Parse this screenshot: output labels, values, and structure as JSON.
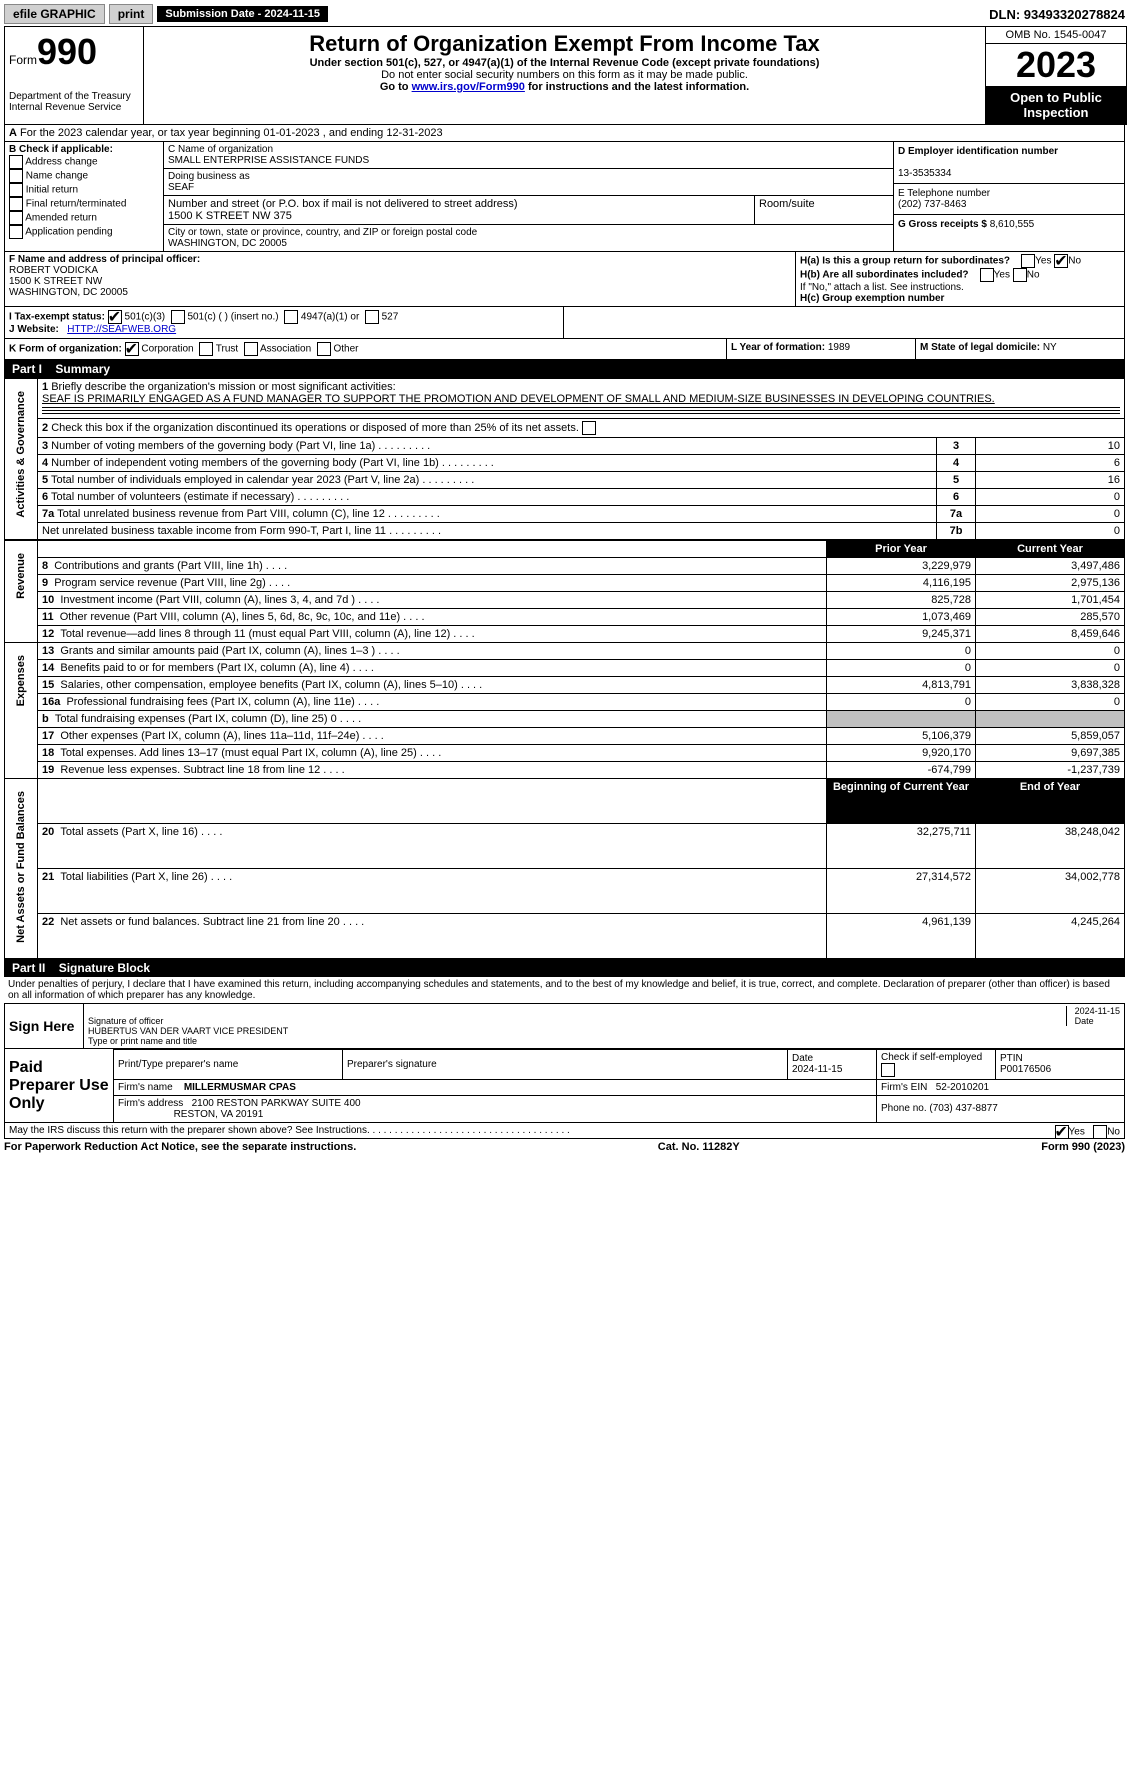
{
  "topbar": {
    "efile": "efile GRAPHIC",
    "print": "print",
    "subdate_lbl": "Submission Date - 2024-11-15",
    "dln": "DLN: 93493320278824"
  },
  "header": {
    "form_word": "Form",
    "form_num": "990",
    "dept": "Department of the Treasury",
    "irs": "Internal Revenue Service",
    "title": "Return of Organization Exempt From Income Tax",
    "sub1": "Under section 501(c), 527, or 4947(a)(1) of the Internal Revenue Code (except private foundations)",
    "sub2": "Do not enter social security numbers on this form as it may be made public.",
    "goto_pre": "Go to ",
    "goto_link": "www.irs.gov/Form990",
    "goto_post": " for instructions and the latest information.",
    "omb": "OMB No. 1545-0047",
    "year": "2023",
    "open": "Open to Public Inspection"
  },
  "row_a": {
    "lbl": "A",
    "text": "For the 2023 calendar year, or tax year beginning 01-01-2023    , and ending 12-31-2023"
  },
  "col_b": {
    "lbl": "B Check if applicable:",
    "opts": [
      "Address change",
      "Name change",
      "Initial return",
      "Final return/terminated",
      "Amended return",
      "Application pending"
    ]
  },
  "col_c": {
    "name_lbl": "C Name of organization",
    "name": "SMALL ENTERPRISE ASSISTANCE FUNDS",
    "dba_lbl": "Doing business as",
    "dba": "SEAF",
    "street_lbl": "Number and street (or P.O. box if mail is not delivered to street address)",
    "street": "1500 K STREET NW 375",
    "room_lbl": "Room/suite",
    "city_lbl": "City or town, state or province, country, and ZIP or foreign postal code",
    "city": "WASHINGTON, DC  20005"
  },
  "col_d": {
    "ein_lbl": "D Employer identification number",
    "ein": "13-3535334",
    "tel_lbl": "E Telephone number",
    "tel": "(202) 737-8463",
    "gross_lbl": "G Gross receipts $",
    "gross": "8,610,555"
  },
  "row_f": {
    "lbl": "F  Name and address of principal officer:",
    "name": "ROBERT VODICKA",
    "street": "1500 K STREET NW",
    "city": "WASHINGTON, DC  20005"
  },
  "row_h": {
    "ha": "H(a)  Is this a group return for subordinates?",
    "hb": "H(b)  Are all subordinates included?",
    "hb2": "If \"No,\" attach a list. See instructions.",
    "hc": "H(c)  Group exemption number"
  },
  "row_i": {
    "lbl": "I    Tax-exempt status:",
    "o1": "501(c)(3)",
    "o2": "501(c) (  ) (insert no.)",
    "o3": "4947(a)(1) or",
    "o4": "527"
  },
  "row_j": {
    "lbl": "J    Website:",
    "val": "HTTP://SEAFWEB.ORG"
  },
  "row_k": {
    "lbl": "K Form of organization:",
    "o1": "Corporation",
    "o2": "Trust",
    "o3": "Association",
    "o4": "Other"
  },
  "row_l": {
    "lbl": "L Year of formation:",
    "val": "1989"
  },
  "row_m": {
    "lbl": "M State of legal domicile:",
    "val": "NY"
  },
  "part1": {
    "hdr": "Part I",
    "title": "Summary",
    "side1": "Activities & Governance",
    "side2": "Revenue",
    "side3": "Expenses",
    "side4": "Net Assets or Fund Balances",
    "l1_lbl": "1",
    "l1a": "Briefly describe the organization's mission or most significant activities:",
    "l1b": "SEAF IS PRIMARILY ENGAGED AS A FUND MANAGER TO SUPPORT THE PROMOTION AND DEVELOPMENT OF SMALL AND MEDIUM-SIZE BUSINESSES IN DEVELOPING COUNTRIES.",
    "l2": "Check this box      if the organization discontinued its operations or disposed of more than 25% of its net assets.",
    "lines_ag": [
      {
        "n": "3",
        "t": "Number of voting members of the governing body (Part VI, line 1a)",
        "k": "3",
        "v": "10"
      },
      {
        "n": "4",
        "t": "Number of independent voting members of the governing body (Part VI, line 1b)",
        "k": "4",
        "v": "6"
      },
      {
        "n": "5",
        "t": "Total number of individuals employed in calendar year 2023 (Part V, line 2a)",
        "k": "5",
        "v": "16"
      },
      {
        "n": "6",
        "t": "Total number of volunteers (estimate if necessary)",
        "k": "6",
        "v": "0"
      },
      {
        "n": "7a",
        "t": "Total unrelated business revenue from Part VIII, column (C), line 12",
        "k": "7a",
        "v": "0"
      },
      {
        "n": "",
        "t": "Net unrelated business taxable income from Form 990-T, Part I, line 11",
        "k": "7b",
        "v": "0"
      }
    ],
    "prior_hdr": "Prior Year",
    "curr_hdr": "Current Year",
    "rev": [
      {
        "n": "8",
        "t": "Contributions and grants (Part VIII, line 1h)",
        "p": "3,229,979",
        "c": "3,497,486"
      },
      {
        "n": "9",
        "t": "Program service revenue (Part VIII, line 2g)",
        "p": "4,116,195",
        "c": "2,975,136"
      },
      {
        "n": "10",
        "t": "Investment income (Part VIII, column (A), lines 3, 4, and 7d )",
        "p": "825,728",
        "c": "1,701,454"
      },
      {
        "n": "11",
        "t": "Other revenue (Part VIII, column (A), lines 5, 6d, 8c, 9c, 10c, and 11e)",
        "p": "1,073,469",
        "c": "285,570"
      },
      {
        "n": "12",
        "t": "Total revenue—add lines 8 through 11 (must equal Part VIII, column (A), line 12)",
        "p": "9,245,371",
        "c": "8,459,646"
      }
    ],
    "exp": [
      {
        "n": "13",
        "t": "Grants and similar amounts paid (Part IX, column (A), lines 1–3 )",
        "p": "0",
        "c": "0"
      },
      {
        "n": "14",
        "t": "Benefits paid to or for members (Part IX, column (A), line 4)",
        "p": "0",
        "c": "0"
      },
      {
        "n": "15",
        "t": "Salaries, other compensation, employee benefits (Part IX, column (A), lines 5–10)",
        "p": "4,813,791",
        "c": "3,838,328"
      },
      {
        "n": "16a",
        "t": "Professional fundraising fees (Part IX, column (A), line 11e)",
        "p": "0",
        "c": "0"
      },
      {
        "n": "b",
        "t": "Total fundraising expenses (Part IX, column (D), line 25) 0",
        "p": "",
        "c": "",
        "gray": true
      },
      {
        "n": "17",
        "t": "Other expenses (Part IX, column (A), lines 11a–11d, 11f–24e)",
        "p": "5,106,379",
        "c": "5,859,057"
      },
      {
        "n": "18",
        "t": "Total expenses. Add lines 13–17 (must equal Part IX, column (A), line 25)",
        "p": "9,920,170",
        "c": "9,697,385"
      },
      {
        "n": "19",
        "t": "Revenue less expenses. Subtract line 18 from line 12",
        "p": "-674,799",
        "c": "-1,237,739"
      }
    ],
    "boy_hdr": "Beginning of Current Year",
    "eoy_hdr": "End of Year",
    "net": [
      {
        "n": "20",
        "t": "Total assets (Part X, line 16)",
        "p": "32,275,711",
        "c": "38,248,042"
      },
      {
        "n": "21",
        "t": "Total liabilities (Part X, line 26)",
        "p": "27,314,572",
        "c": "34,002,778"
      },
      {
        "n": "22",
        "t": "Net assets or fund balances. Subtract line 21 from line 20",
        "p": "4,961,139",
        "c": "4,245,264"
      }
    ]
  },
  "part2": {
    "hdr": "Part II",
    "title": "Signature Block",
    "decl": "Under penalties of perjury, I declare that I have examined this return, including accompanying schedules and statements, and to the best of my knowledge and belief, it is true, correct, and complete. Declaration of preparer (other than officer) is based on all information of which preparer has any knowledge.",
    "sign": "Sign Here",
    "sig_lbl": "Signature of officer",
    "date_lbl": "Date",
    "officer": "HUBERTUS VAN DER VAART VICE PRESIDENT",
    "type_lbl": "Type or print name and title",
    "date1": "2024-11-15",
    "paid": "Paid Preparer Use Only",
    "prep_name_lbl": "Print/Type preparer's name",
    "prep_sig_lbl": "Preparer's signature",
    "prep_date_lbl": "Date",
    "prep_date": "2024-11-15",
    "check_lbl": "Check      if self-employed",
    "ptin_lbl": "PTIN",
    "ptin": "P00176506",
    "firm_lbl": "Firm's name",
    "firm": "MILLERMUSMAR CPAS",
    "fein_lbl": "Firm's EIN",
    "fein": "52-2010201",
    "addr_lbl": "Firm's address",
    "addr1": "2100 RESTON PARKWAY SUITE 400",
    "addr2": "RESTON, VA  20191",
    "phone_lbl": "Phone no.",
    "phone": "(703) 437-8877",
    "discuss": "May the IRS discuss this return with the preparer shown above? See Instructions.",
    "yes": "Yes",
    "no": "No"
  },
  "footer": {
    "left": "For Paperwork Reduction Act Notice, see the separate instructions.",
    "mid": "Cat. No. 11282Y",
    "right": "Form 990 (2023)"
  }
}
